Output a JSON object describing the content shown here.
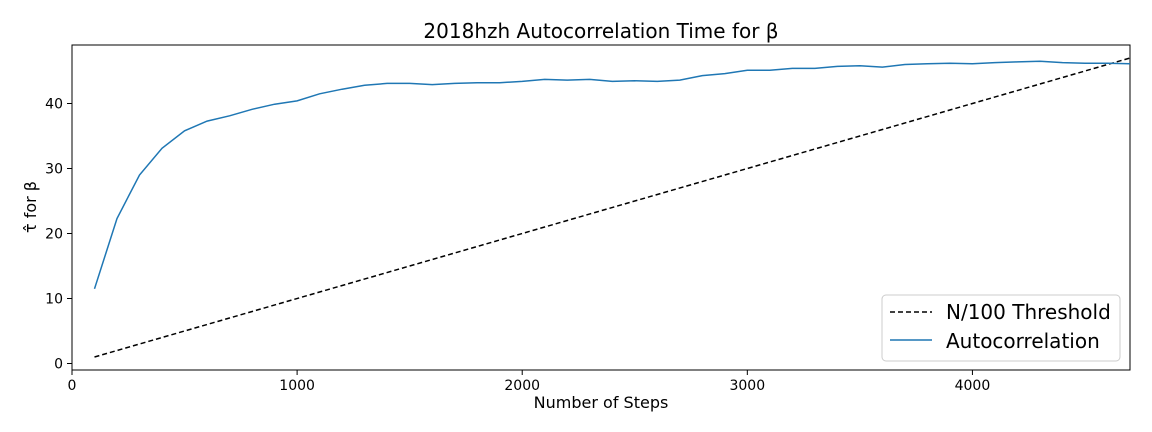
{
  "chart_data": {
    "type": "line",
    "title": "2018hzh Autocorrelation Time for β",
    "xlabel": "Number of Steps",
    "ylabel": "τ̂ for β",
    "xlim": [
      0,
      4700
    ],
    "ylim": [
      -1,
      49
    ],
    "xticks": [
      0,
      1000,
      2000,
      3000,
      4000
    ],
    "xtick_labels": [
      "0",
      "1000",
      "2000",
      "3000",
      "4000"
    ],
    "yticks": [
      0,
      10,
      20,
      30,
      40
    ],
    "ytick_labels": [
      "0",
      "10",
      "20",
      "30",
      "40"
    ],
    "grid": false,
    "legend": "lower-right",
    "series": [
      {
        "name": "N/100 Threshold",
        "color": "#000000",
        "style": "dashed",
        "x": [
          100,
          4700
        ],
        "y": [
          1,
          47
        ]
      },
      {
        "name": "Autocorrelation",
        "color": "#1f77b4",
        "style": "solid",
        "x": [
          100,
          200,
          300,
          400,
          500,
          600,
          700,
          800,
          900,
          1000,
          1100,
          1200,
          1300,
          1400,
          1500,
          1600,
          1700,
          1800,
          1900,
          2000,
          2100,
          2200,
          2300,
          2400,
          2500,
          2600,
          2700,
          2800,
          2900,
          3000,
          3100,
          3200,
          3300,
          3400,
          3500,
          3600,
          3700,
          3800,
          3900,
          4000,
          4100,
          4200,
          4300,
          4400,
          4500,
          4600,
          4700
        ],
        "y": [
          11.5,
          22.3,
          29.0,
          33.1,
          35.8,
          37.3,
          38.1,
          39.1,
          39.9,
          40.4,
          41.5,
          42.2,
          42.8,
          43.1,
          43.1,
          42.9,
          43.1,
          43.2,
          43.2,
          43.4,
          43.7,
          43.6,
          43.7,
          43.4,
          43.5,
          43.4,
          43.6,
          44.3,
          44.6,
          45.1,
          45.1,
          45.4,
          45.4,
          45.7,
          45.8,
          45.6,
          46.0,
          46.1,
          46.2,
          46.1,
          46.3,
          46.4,
          46.5,
          46.3,
          46.2,
          46.2,
          46.1
        ]
      }
    ]
  }
}
